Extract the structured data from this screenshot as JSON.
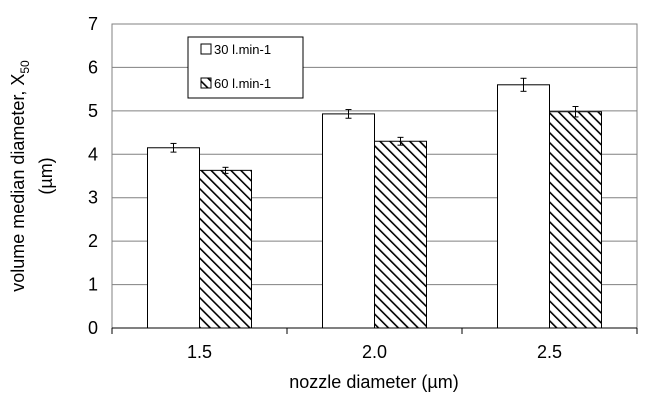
{
  "chart_data": {
    "type": "bar",
    "categories": [
      "1.5",
      "2.0",
      "2.5"
    ],
    "series": [
      {
        "name": "30 l.min-1",
        "values": [
          4.15,
          4.93,
          5.6
        ],
        "errors": [
          0.1,
          0.1,
          0.15
        ],
        "fill": "white"
      },
      {
        "name": "60 l.min-1",
        "values": [
          3.63,
          4.3,
          4.98
        ],
        "errors": [
          0.07,
          0.09,
          0.12
        ],
        "fill": "diagonal-hatch"
      }
    ],
    "xlabel": "nozzle diameter (µm)",
    "ylabel_main": "volume median diameter, X",
    "ylabel_sub": "50",
    "ylabel_unit": "(µm)",
    "ylim": [
      0,
      7
    ],
    "yticks": [
      "0",
      "1",
      "2",
      "3",
      "4",
      "5",
      "6",
      "7"
    ],
    "grid": true,
    "legend_position": "top-left",
    "colors": {
      "bar_stroke": "#000000",
      "grid": "#808080",
      "background": "#ffffff"
    }
  }
}
